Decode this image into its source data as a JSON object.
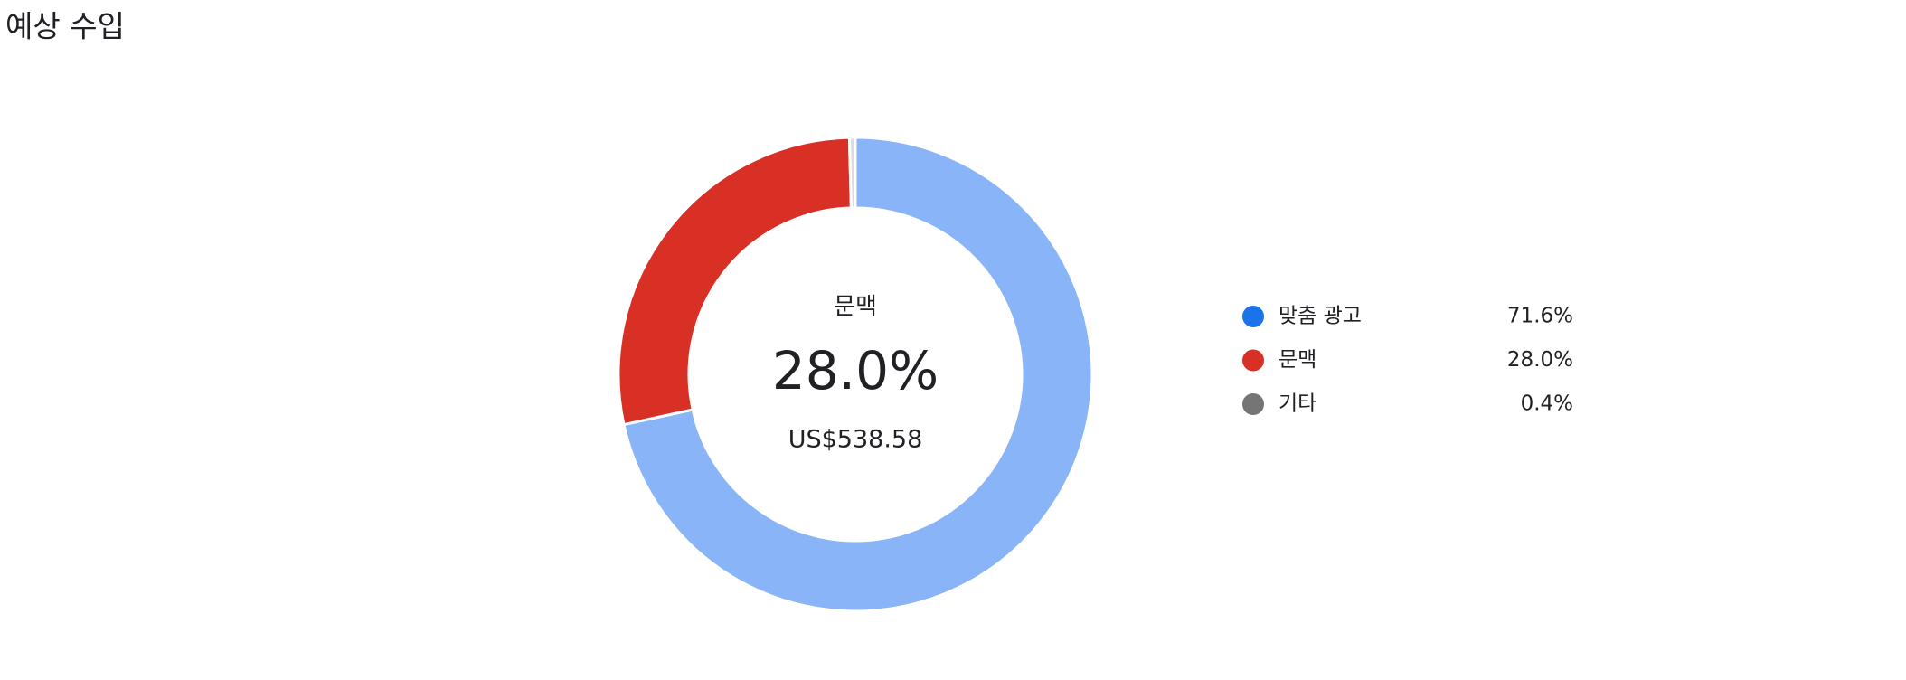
{
  "chart_data": {
    "type": "donut",
    "title": "예상 수입",
    "categories": [
      "맞춤 광고",
      "문맥",
      "기타"
    ],
    "values": [
      71.6,
      28.0,
      0.4
    ],
    "value_labels": [
      "71.6%",
      "28.0%",
      "0.4%"
    ],
    "colors": [
      "#1a73e8",
      "#d93025",
      "#757575"
    ],
    "slice_colors": [
      "#8ab4f8",
      "#d93025",
      "#dadce0"
    ],
    "center_amount": "US$538.58"
  }
}
